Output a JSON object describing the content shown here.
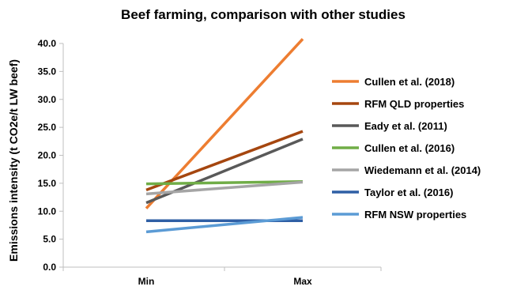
{
  "chart_data": {
    "type": "line",
    "title": "Beef farming, comparison with other studies",
    "xlabel": "",
    "ylabel": "Emissions intensity (t CO2e/t LW beef)",
    "categories": [
      "Min",
      "Max"
    ],
    "ylim": [
      0,
      40
    ],
    "yticks": [
      "0.0",
      "5.0",
      "10.0",
      "15.0",
      "20.0",
      "25.0",
      "30.0",
      "35.0",
      "40.0"
    ],
    "grid": false,
    "legend_position": "right",
    "series": [
      {
        "name": "Cullen et al. (2018)",
        "color": "#ED7D31",
        "values": [
          10.5,
          40.8
        ]
      },
      {
        "name": "RFM QLD properties",
        "color": "#A5460F",
        "values": [
          13.8,
          24.3
        ]
      },
      {
        "name": "Eady et al. (2011)",
        "color": "#595959",
        "values": [
          11.5,
          22.9
        ]
      },
      {
        "name": "Cullen et al. (2016)",
        "color": "#70AD47",
        "values": [
          14.9,
          15.3
        ]
      },
      {
        "name": "Wiedemann et al. (2014)",
        "color": "#A5A5A5",
        "values": [
          13.1,
          15.2
        ]
      },
      {
        "name": "Taylor et al. (2016)",
        "color": "#2F5FA5",
        "values": [
          8.3,
          8.3
        ]
      },
      {
        "name": "RFM NSW properties",
        "color": "#5B9BD5",
        "values": [
          6.3,
          8.9
        ]
      }
    ]
  }
}
